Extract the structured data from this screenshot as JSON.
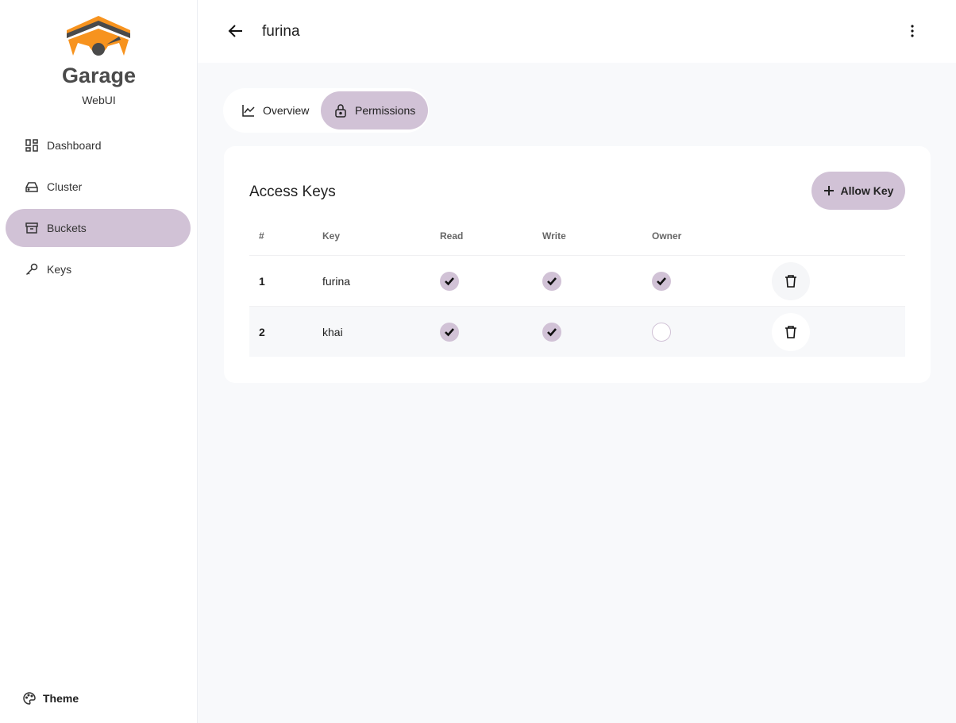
{
  "brand": {
    "name": "Garage",
    "subtitle": "WebUI"
  },
  "sidebar": {
    "items": [
      {
        "label": "Dashboard"
      },
      {
        "label": "Cluster"
      },
      {
        "label": "Buckets",
        "active": true
      },
      {
        "label": "Keys"
      }
    ],
    "theme": "Theme"
  },
  "header": {
    "title": "furina"
  },
  "tabs": [
    {
      "label": "Overview"
    },
    {
      "label": "Permissions",
      "active": true
    }
  ],
  "access_keys": {
    "title": "Access Keys",
    "allow_label": "Allow Key",
    "columns": [
      "#",
      "Key",
      "Read",
      "Write",
      "Owner"
    ],
    "rows": [
      {
        "num": "1",
        "key": "furina",
        "read": true,
        "write": true,
        "owner": true
      },
      {
        "num": "2",
        "key": "khai",
        "read": true,
        "write": true,
        "owner": false
      }
    ]
  },
  "colors": {
    "accent": "#d1c2d6",
    "logo_orange": "#f7931e",
    "logo_gray": "#4a4a4a"
  }
}
